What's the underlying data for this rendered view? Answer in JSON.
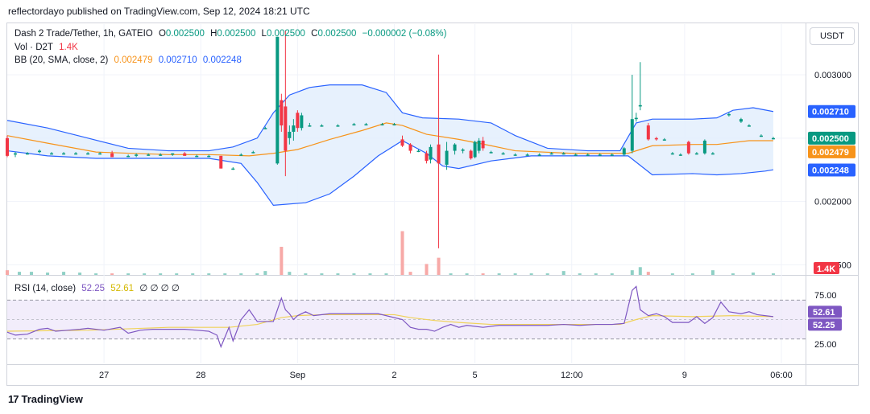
{
  "header": {
    "published": "reflectordayo published on TradingView.com, Sep 12, 2024 18:21 UTC"
  },
  "legend": {
    "symbol": "Dash 2 Trade/Tether, 1h, GATEIO",
    "o_label": "O",
    "o_value": "0.002500",
    "h_label": "H",
    "h_value": "0.002500",
    "l_label": "L",
    "l_value": "0.002500",
    "c_label": "C",
    "c_value": "0.002500",
    "change": "−0.000002 (−0.08%)",
    "vol_label": "Vol · D2T",
    "vol_value": "1.4K",
    "bb_label": "BB (20, SMA, close, 2)",
    "bb_basis": "0.002479",
    "bb_upper": "0.002710",
    "bb_lower": "0.002248",
    "rsi_label": "RSI (14, close)",
    "rsi_value": "52.25",
    "rsi_ma": "52.61",
    "rsi_zeros": "∅ ∅ ∅ ∅"
  },
  "currency": "USDT",
  "footer": {
    "logo": "17",
    "brand": "TradingView"
  },
  "colors": {
    "up": "#089981",
    "down": "#f23645",
    "bb_basis": "#f7931a",
    "bb_band": "#2962ff",
    "bb_fill": "#e3effd",
    "rsi": "#7e57c2",
    "rsi_ma": "#f0d25a"
  },
  "chart_data": {
    "type": "candlestick",
    "price_axis": {
      "ticks": [
        0.0015,
        0.002,
        0.0025,
        0.003
      ],
      "tick_labels": [
        "0.001500",
        "0.002000",
        "0.002500",
        "0.003000"
      ],
      "ylim": [
        0.00142,
        0.0034
      ]
    },
    "price_labels": [
      {
        "text": "0.002710",
        "value": 0.00271,
        "color": "#2962ff"
      },
      {
        "text": "0.002500",
        "value": 0.0025,
        "color": "#089981"
      },
      {
        "text": "0.002479",
        "value": 0.002479,
        "color": "#f7931a"
      },
      {
        "text": "0.002248",
        "value": 0.002248,
        "color": "#2962ff"
      }
    ],
    "volume_label": "1.4K",
    "rsi_axis": {
      "ticks": [
        75,
        25
      ],
      "tick_labels": [
        "75.00",
        "25.00"
      ],
      "ylim": [
        5,
        95
      ],
      "bands": [
        70,
        30
      ],
      "mid": 50
    },
    "rsi_labels": [
      {
        "text": "52.61",
        "value": 52.61,
        "color": "#7e57c2"
      },
      {
        "text": "52.25",
        "value": 52.25,
        "color": "#7e57c2"
      }
    ],
    "x_labels": [
      {
        "text": "27",
        "x": 24
      },
      {
        "text": "28",
        "x": 48
      },
      {
        "text": "Sep",
        "x": 72
      },
      {
        "text": "2",
        "x": 96
      },
      {
        "text": "5",
        "x": 116
      },
      {
        "text": "12:00",
        "x": 140
      },
      {
        "text": "9",
        "x": 168
      },
      {
        "text": "06:00",
        "x": 192
      }
    ],
    "x_range": [
      0,
      198
    ],
    "candles": [
      [
        0,
        0.0025,
        0.00252,
        0.00235,
        0.00236
      ],
      [
        2,
        0.00237,
        0.00239,
        0.00235,
        0.00238
      ],
      [
        5,
        0.00238,
        0.00239,
        0.00237,
        0.00238
      ],
      [
        8,
        0.00239,
        0.00241,
        0.00238,
        0.0024
      ],
      [
        11,
        0.00238,
        0.00239,
        0.00237,
        0.00238
      ],
      [
        14,
        0.00238,
        0.00239,
        0.00237,
        0.00238
      ],
      [
        17,
        0.00238,
        0.00239,
        0.00237,
        0.00238
      ],
      [
        20,
        0.00238,
        0.00239,
        0.00237,
        0.00238
      ],
      [
        23,
        0.00238,
        0.00239,
        0.00237,
        0.00238
      ],
      [
        26,
        0.00238,
        0.0024,
        0.00236,
        0.00235
      ],
      [
        30,
        0.00236,
        0.00237,
        0.00235,
        0.00236
      ],
      [
        32,
        0.00236,
        0.00238,
        0.00235,
        0.00237
      ],
      [
        35,
        0.00237,
        0.00238,
        0.00236,
        0.00237
      ],
      [
        38,
        0.00237,
        0.00238,
        0.00236,
        0.00237
      ],
      [
        41,
        0.00237,
        0.00238,
        0.00236,
        0.00238
      ],
      [
        44,
        0.00238,
        0.00239,
        0.00237,
        0.00236
      ],
      [
        47,
        0.00236,
        0.00237,
        0.00235,
        0.00236
      ],
      [
        50,
        0.00236,
        0.00237,
        0.00235,
        0.00236
      ],
      [
        53,
        0.00236,
        0.00236,
        0.00226,
        0.00226
      ],
      [
        56,
        0.00226,
        0.00227,
        0.00225,
        0.00226
      ],
      [
        58,
        0.00237,
        0.00238,
        0.00236,
        0.00237
      ],
      [
        61,
        0.00239,
        0.0024,
        0.00238,
        0.00239
      ],
      [
        64,
        0.00258,
        0.00259,
        0.00257,
        0.00258
      ],
      [
        67,
        0.0023,
        0.0033,
        0.00229,
        0.0033
      ],
      [
        68,
        0.0028,
        0.00285,
        0.00255,
        0.0026
      ],
      [
        69,
        0.00275,
        0.00335,
        0.0022,
        0.0024
      ],
      [
        70,
        0.0025,
        0.0026,
        0.00245,
        0.00255
      ],
      [
        71,
        0.00255,
        0.00265,
        0.00248,
        0.0026
      ],
      [
        72,
        0.0027,
        0.00272,
        0.00255,
        0.00258
      ],
      [
        73,
        0.00258,
        0.0027,
        0.00256,
        0.00268
      ],
      [
        75,
        0.0026,
        0.00262,
        0.00259,
        0.0026
      ],
      [
        78,
        0.0026,
        0.00261,
        0.00259,
        0.0026
      ],
      [
        82,
        0.0026,
        0.00261,
        0.00259,
        0.0026
      ],
      [
        86,
        0.00261,
        0.00262,
        0.0026,
        0.00261
      ],
      [
        89,
        0.00261,
        0.00262,
        0.0026,
        0.00261
      ],
      [
        93,
        0.00261,
        0.00262,
        0.0026,
        0.00261
      ],
      [
        96,
        0.00261,
        0.00262,
        0.0026,
        0.00261
      ],
      [
        98,
        0.00249,
        0.00252,
        0.00243,
        0.00244
      ],
      [
        100,
        0.00245,
        0.00246,
        0.00238,
        0.0024
      ],
      [
        102,
        0.0024,
        0.00241,
        0.00239,
        0.0024
      ],
      [
        104,
        0.00238,
        0.0024,
        0.0023,
        0.00232
      ],
      [
        105,
        0.00233,
        0.00245,
        0.0023,
        0.00243
      ],
      [
        107,
        0.00245,
        0.00316,
        0.00163,
        0.0023
      ],
      [
        109,
        0.00229,
        0.00247,
        0.00225,
        0.0024
      ],
      [
        111,
        0.0024,
        0.00246,
        0.00237,
        0.00245
      ],
      [
        113,
        0.0024,
        0.00242,
        0.00238,
        0.00241
      ],
      [
        115,
        0.0024,
        0.00241,
        0.00233,
        0.00234
      ],
      [
        116,
        0.00235,
        0.00248,
        0.00234,
        0.00247
      ],
      [
        117,
        0.0024,
        0.0025,
        0.00238,
        0.00248
      ],
      [
        118,
        0.00248,
        0.00251,
        0.0024,
        0.00242
      ],
      [
        120,
        0.00239,
        0.0024,
        0.00238,
        0.00239
      ],
      [
        123,
        0.00238,
        0.00239,
        0.00237,
        0.00238
      ],
      [
        126,
        0.00237,
        0.00238,
        0.00236,
        0.00237
      ],
      [
        129,
        0.00237,
        0.00238,
        0.00236,
        0.00237
      ],
      [
        132,
        0.00237,
        0.00238,
        0.00236,
        0.00237
      ],
      [
        135,
        0.00238,
        0.00239,
        0.00237,
        0.00238
      ],
      [
        138,
        0.00238,
        0.00239,
        0.00237,
        0.00238
      ],
      [
        141,
        0.00237,
        0.00238,
        0.00236,
        0.00237
      ],
      [
        144,
        0.00237,
        0.00238,
        0.00236,
        0.00237
      ],
      [
        147,
        0.00237,
        0.00238,
        0.00236,
        0.00237
      ],
      [
        150,
        0.00237,
        0.00238,
        0.00236,
        0.00237
      ],
      [
        153,
        0.00237,
        0.00243,
        0.00236,
        0.00242
      ],
      [
        155,
        0.0024,
        0.003,
        0.00238,
        0.00265
      ],
      [
        156,
        0.00265,
        0.0027,
        0.00263,
        0.00266
      ],
      [
        157,
        0.00275,
        0.0031,
        0.00272,
        0.00276
      ],
      [
        159,
        0.0026,
        0.00262,
        0.00248,
        0.00249
      ],
      [
        161,
        0.0025,
        0.00251,
        0.00248,
        0.00249
      ],
      [
        163,
        0.00249,
        0.0025,
        0.00248,
        0.00249
      ],
      [
        165,
        0.00238,
        0.00239,
        0.00237,
        0.00238
      ],
      [
        167,
        0.00237,
        0.00238,
        0.00236,
        0.00237
      ],
      [
        169,
        0.00247,
        0.00248,
        0.00237,
        0.00238
      ],
      [
        171,
        0.00238,
        0.00239,
        0.00237,
        0.00238
      ],
      [
        173,
        0.00238,
        0.00249,
        0.00237,
        0.00248
      ],
      [
        175,
        0.00238,
        0.00239,
        0.00237,
        0.00238
      ],
      [
        179,
        0.00268,
        0.0027,
        0.00267,
        0.00269
      ],
      [
        182,
        0.00263,
        0.00266,
        0.00262,
        0.00265
      ],
      [
        184,
        0.0026,
        0.00261,
        0.00259,
        0.0026
      ],
      [
        187,
        0.00252,
        0.00253,
        0.00251,
        0.00252
      ],
      [
        190,
        0.0025,
        0.00251,
        0.00249,
        0.0025
      ]
    ],
    "bb_upper": [
      [
        0,
        0.00264
      ],
      [
        10,
        0.00258
      ],
      [
        20,
        0.0025
      ],
      [
        30,
        0.00242
      ],
      [
        40,
        0.0024
      ],
      [
        50,
        0.0024
      ],
      [
        56,
        0.00243
      ],
      [
        62,
        0.0025
      ],
      [
        66,
        0.0027
      ],
      [
        70,
        0.00284
      ],
      [
        75,
        0.0029
      ],
      [
        80,
        0.00292
      ],
      [
        88,
        0.00292
      ],
      [
        94,
        0.00286
      ],
      [
        98,
        0.0027
      ],
      [
        103,
        0.00266
      ],
      [
        112,
        0.00265
      ],
      [
        120,
        0.00262
      ],
      [
        126,
        0.00252
      ],
      [
        134,
        0.00242
      ],
      [
        144,
        0.0024
      ],
      [
        152,
        0.0024
      ],
      [
        156,
        0.00262
      ],
      [
        160,
        0.00265
      ],
      [
        170,
        0.00265
      ],
      [
        176,
        0.00266
      ],
      [
        180,
        0.00272
      ],
      [
        185,
        0.00274
      ],
      [
        190,
        0.00271
      ]
    ],
    "bb_lower": [
      [
        0,
        0.0024
      ],
      [
        10,
        0.00236
      ],
      [
        22,
        0.00234
      ],
      [
        40,
        0.00234
      ],
      [
        50,
        0.00234
      ],
      [
        58,
        0.0023
      ],
      [
        62,
        0.00215
      ],
      [
        66,
        0.00197
      ],
      [
        74,
        0.00199
      ],
      [
        80,
        0.00206
      ],
      [
        86,
        0.0022
      ],
      [
        92,
        0.00236
      ],
      [
        98,
        0.00248
      ],
      [
        104,
        0.00238
      ],
      [
        108,
        0.00228
      ],
      [
        112,
        0.00226
      ],
      [
        120,
        0.00232
      ],
      [
        130,
        0.00236
      ],
      [
        145,
        0.00236
      ],
      [
        154,
        0.00236
      ],
      [
        160,
        0.00221
      ],
      [
        170,
        0.00222
      ],
      [
        176,
        0.00221
      ],
      [
        182,
        0.00222
      ],
      [
        188,
        0.00224
      ],
      [
        190,
        0.00225
      ]
    ],
    "bb_basis": [
      [
        0,
        0.00252
      ],
      [
        10,
        0.00246
      ],
      [
        22,
        0.00239
      ],
      [
        40,
        0.00237
      ],
      [
        50,
        0.00237
      ],
      [
        60,
        0.00236
      ],
      [
        66,
        0.00238
      ],
      [
        72,
        0.00241
      ],
      [
        80,
        0.00249
      ],
      [
        88,
        0.00256
      ],
      [
        94,
        0.00262
      ],
      [
        98,
        0.0026
      ],
      [
        104,
        0.00253
      ],
      [
        112,
        0.00249
      ],
      [
        120,
        0.00244
      ],
      [
        126,
        0.0024
      ],
      [
        140,
        0.00238
      ],
      [
        154,
        0.00238
      ],
      [
        160,
        0.00244
      ],
      [
        170,
        0.00245
      ],
      [
        176,
        0.00245
      ],
      [
        184,
        0.00248
      ],
      [
        190,
        0.00248
      ]
    ],
    "volume": [
      [
        0,
        3
      ],
      [
        3,
        2
      ],
      [
        6,
        2
      ],
      [
        10,
        1.5
      ],
      [
        14,
        2
      ],
      [
        18,
        1.5
      ],
      [
        22,
        1
      ],
      [
        26,
        1
      ],
      [
        30,
        1
      ],
      [
        34,
        1
      ],
      [
        38,
        1
      ],
      [
        42,
        1
      ],
      [
        46,
        1
      ],
      [
        50,
        1
      ],
      [
        54,
        1
      ],
      [
        58,
        1
      ],
      [
        62,
        1
      ],
      [
        64,
        2.5
      ],
      [
        68,
        18
      ],
      [
        70,
        2
      ],
      [
        74,
        1
      ],
      [
        78,
        1
      ],
      [
        82,
        1
      ],
      [
        86,
        1
      ],
      [
        90,
        1
      ],
      [
        94,
        1
      ],
      [
        98,
        28
      ],
      [
        100,
        2
      ],
      [
        104,
        7
      ],
      [
        107,
        11
      ],
      [
        110,
        1
      ],
      [
        114,
        1
      ],
      [
        118,
        1
      ],
      [
        122,
        1
      ],
      [
        126,
        1
      ],
      [
        130,
        1
      ],
      [
        134,
        1
      ],
      [
        138,
        2.5
      ],
      [
        142,
        1
      ],
      [
        146,
        1
      ],
      [
        150,
        1
      ],
      [
        155,
        3
      ],
      [
        157,
        5
      ],
      [
        159,
        2
      ],
      [
        165,
        1
      ],
      [
        170,
        1
      ],
      [
        175,
        3
      ],
      [
        180,
        1
      ],
      [
        185,
        1.5
      ],
      [
        190,
        1
      ]
    ],
    "volume_max": 36,
    "rsi": [
      [
        0,
        37
      ],
      [
        2,
        34
      ],
      [
        5,
        35
      ],
      [
        8,
        40
      ],
      [
        10,
        41
      ],
      [
        12,
        38
      ],
      [
        15,
        39
      ],
      [
        18,
        40
      ],
      [
        20,
        41
      ],
      [
        24,
        39
      ],
      [
        28,
        42
      ],
      [
        30,
        36
      ],
      [
        33,
        39
      ],
      [
        36,
        40
      ],
      [
        40,
        40
      ],
      [
        44,
        40
      ],
      [
        47,
        39
      ],
      [
        50,
        38
      ],
      [
        52,
        34
      ],
      [
        53,
        22
      ],
      [
        55,
        42
      ],
      [
        56,
        28
      ],
      [
        58,
        50
      ],
      [
        60,
        60
      ],
      [
        62,
        48
      ],
      [
        64,
        48
      ],
      [
        66,
        48
      ],
      [
        68,
        72
      ],
      [
        69,
        60
      ],
      [
        70,
        56
      ],
      [
        71,
        50
      ],
      [
        72,
        54
      ],
      [
        74,
        58
      ],
      [
        76,
        54
      ],
      [
        80,
        56
      ],
      [
        86,
        56
      ],
      [
        92,
        56
      ],
      [
        98,
        50
      ],
      [
        100,
        42
      ],
      [
        102,
        40
      ],
      [
        104,
        40
      ],
      [
        106,
        38
      ],
      [
        108,
        42
      ],
      [
        110,
        45
      ],
      [
        112,
        42
      ],
      [
        114,
        44
      ],
      [
        118,
        42
      ],
      [
        122,
        44
      ],
      [
        126,
        44
      ],
      [
        130,
        44
      ],
      [
        134,
        44
      ],
      [
        138,
        45
      ],
      [
        142,
        44
      ],
      [
        146,
        45
      ],
      [
        150,
        45
      ],
      [
        153,
        46
      ],
      [
        155,
        80
      ],
      [
        156,
        84
      ],
      [
        157,
        60
      ],
      [
        159,
        54
      ],
      [
        161,
        56
      ],
      [
        163,
        53
      ],
      [
        165,
        47
      ],
      [
        169,
        47
      ],
      [
        171,
        53
      ],
      [
        173,
        46
      ],
      [
        175,
        52
      ],
      [
        177,
        68
      ],
      [
        179,
        58
      ],
      [
        182,
        56
      ],
      [
        184,
        58
      ],
      [
        186,
        55
      ],
      [
        190,
        53
      ]
    ],
    "rsi_ma": [
      [
        0,
        38
      ],
      [
        20,
        39
      ],
      [
        40,
        42
      ],
      [
        55,
        42
      ],
      [
        62,
        45
      ],
      [
        68,
        52
      ],
      [
        72,
        54
      ],
      [
        78,
        55
      ],
      [
        96,
        55
      ],
      [
        100,
        52
      ],
      [
        106,
        49
      ],
      [
        112,
        47
      ],
      [
        120,
        45
      ],
      [
        140,
        45
      ],
      [
        152,
        45
      ],
      [
        156,
        50
      ],
      [
        160,
        54
      ],
      [
        170,
        53
      ],
      [
        180,
        54
      ],
      [
        190,
        53
      ]
    ]
  }
}
